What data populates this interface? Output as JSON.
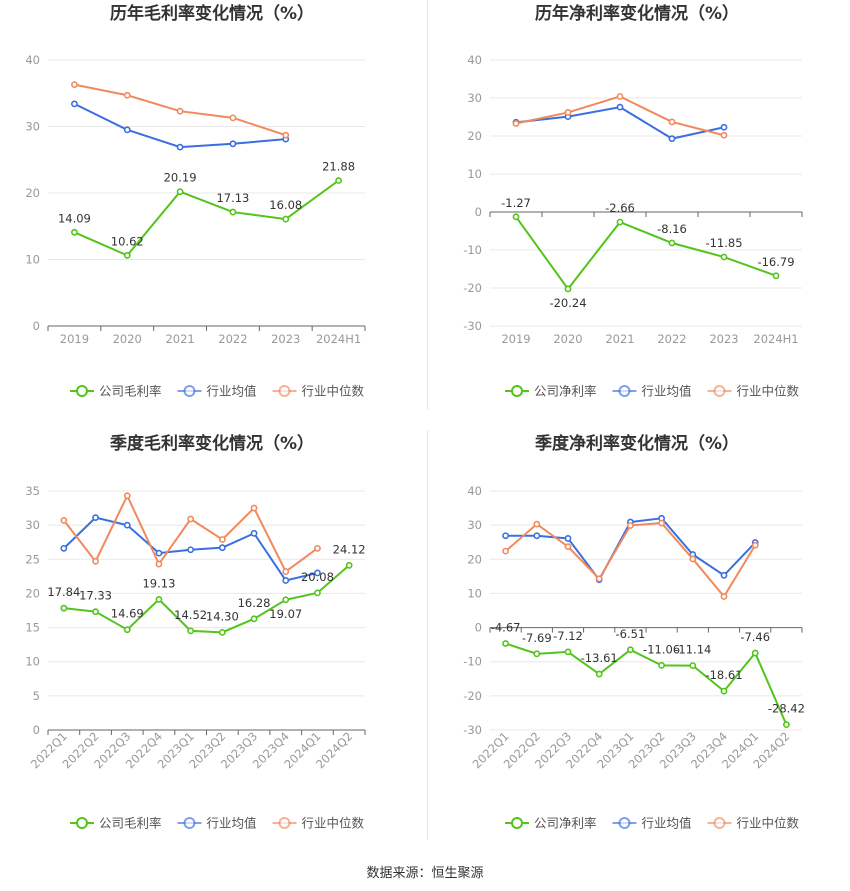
{
  "footer": {
    "source_label": "数据来源：恒生聚源"
  },
  "chart_data": [
    {
      "type": "line",
      "title": "历年毛利率变化情况（%）",
      "categories": [
        "2019",
        "2020",
        "2021",
        "2022",
        "2023",
        "2024H1"
      ],
      "ylim": [
        0,
        40
      ],
      "yticks": [
        0,
        10,
        20,
        30,
        40
      ],
      "rotate_ticks": false,
      "series": [
        {
          "name": "公司毛利率",
          "color": "#52c41a",
          "labels": true,
          "values": [
            14.09,
            10.62,
            20.19,
            17.13,
            16.08,
            21.88
          ]
        },
        {
          "name": "行业均值",
          "color": "#3a6fe0",
          "labels": false,
          "values": [
            33.4,
            29.5,
            26.9,
            27.4,
            28.1,
            null
          ]
        },
        {
          "name": "行业中位数",
          "color": "#f08a5d",
          "labels": false,
          "values": [
            36.3,
            34.7,
            32.3,
            31.3,
            28.7,
            null
          ]
        }
      ]
    },
    {
      "type": "line",
      "title": "历年净利率变化情况（%）",
      "categories": [
        "2019",
        "2020",
        "2021",
        "2022",
        "2023",
        "2024H1"
      ],
      "ylim": [
        -30,
        40
      ],
      "yticks": [
        -30,
        -20,
        -10,
        0,
        10,
        20,
        30,
        40
      ],
      "rotate_ticks": false,
      "series": [
        {
          "name": "公司净利率",
          "color": "#52c41a",
          "labels": true,
          "values": [
            -1.27,
            -20.24,
            -2.66,
            -8.16,
            -11.85,
            -16.79
          ]
        },
        {
          "name": "行业均值",
          "color": "#3a6fe0",
          "labels": false,
          "values": [
            23.6,
            25.1,
            27.6,
            19.3,
            22.3,
            null
          ]
        },
        {
          "name": "行业中位数",
          "color": "#f08a5d",
          "labels": false,
          "values": [
            23.3,
            26.2,
            30.4,
            23.7,
            20.2,
            null
          ]
        }
      ]
    },
    {
      "type": "line",
      "title": "季度毛利率变化情况（%）",
      "categories": [
        "2022Q1",
        "2022Q2",
        "2022Q3",
        "2022Q4",
        "2023Q1",
        "2023Q2",
        "2023Q3",
        "2023Q4",
        "2024Q1",
        "2024Q2"
      ],
      "ylim": [
        0,
        35
      ],
      "yticks": [
        0,
        5,
        10,
        15,
        20,
        25,
        30,
        35
      ],
      "rotate_ticks": true,
      "series": [
        {
          "name": "公司毛利率",
          "color": "#52c41a",
          "labels": true,
          "values": [
            17.84,
            17.33,
            14.69,
            19.13,
            14.52,
            14.3,
            16.28,
            19.07,
            20.08,
            24.12
          ]
        },
        {
          "name": "行业均值",
          "color": "#3a6fe0",
          "labels": false,
          "values": [
            26.6,
            31.1,
            30.0,
            25.9,
            26.4,
            26.7,
            28.8,
            21.9,
            23.0,
            null
          ]
        },
        {
          "name": "行业中位数",
          "color": "#f08a5d",
          "labels": false,
          "values": [
            30.7,
            24.7,
            34.3,
            24.3,
            30.9,
            27.9,
            32.5,
            23.2,
            26.6,
            null
          ]
        }
      ]
    },
    {
      "type": "line",
      "title": "季度净利率变化情况（%）",
      "categories": [
        "2022Q1",
        "2022Q2",
        "2022Q3",
        "2022Q4",
        "2023Q1",
        "2023Q2",
        "2023Q3",
        "2023Q4",
        "2024Q1",
        "2024Q2"
      ],
      "ylim": [
        -30,
        40
      ],
      "yticks": [
        -30,
        -20,
        -10,
        0,
        10,
        20,
        30,
        40
      ],
      "rotate_ticks": true,
      "series": [
        {
          "name": "公司净利率",
          "color": "#52c41a",
          "labels": true,
          "values": [
            -4.67,
            -7.69,
            -7.12,
            -13.61,
            -6.51,
            -11.06,
            -11.14,
            -18.61,
            -7.46,
            -28.42
          ]
        },
        {
          "name": "行业均值",
          "color": "#3a6fe0",
          "labels": false,
          "values": [
            26.9,
            26.9,
            26.1,
            14.0,
            30.9,
            32.0,
            21.4,
            15.3,
            24.9,
            null
          ]
        },
        {
          "name": "行业中位数",
          "color": "#f08a5d",
          "labels": false,
          "values": [
            22.4,
            30.3,
            23.7,
            14.3,
            29.9,
            30.6,
            20.1,
            9.1,
            24.1,
            null
          ]
        }
      ]
    }
  ]
}
